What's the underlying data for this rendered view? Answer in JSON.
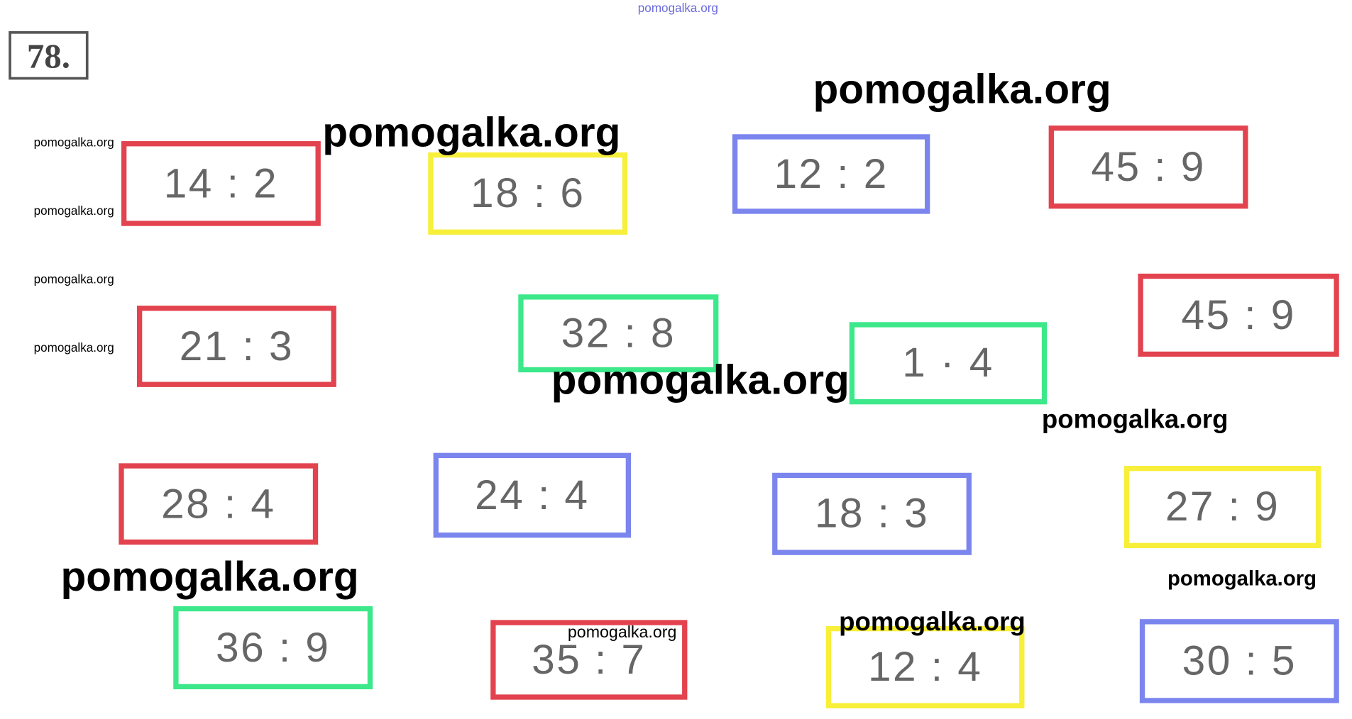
{
  "header": {
    "number": "78."
  },
  "cards": [
    {
      "text": "14 : 2",
      "color": "#e2434f"
    },
    {
      "text": "18 : 6",
      "color": "#f7ef3a"
    },
    {
      "text": "12 : 2",
      "color": "#7b85ee"
    },
    {
      "text": "45 : 9",
      "color": "#e2434f"
    },
    {
      "text": "21 : 3",
      "color": "#e2434f"
    },
    {
      "text": "32 : 8",
      "color": "#3de88a"
    },
    {
      "text": "1 · 4",
      "color": "#3de88a"
    },
    {
      "text": "45 : 9",
      "color": "#e2434f"
    },
    {
      "text": "28 : 4",
      "color": "#e2434f"
    },
    {
      "text": "24 : 4",
      "color": "#7b85ee"
    },
    {
      "text": "18 : 3",
      "color": "#7b85ee"
    },
    {
      "text": "27 : 9",
      "color": "#f7ef3a"
    },
    {
      "text": "36 : 9",
      "color": "#3de88a"
    },
    {
      "text": "35 : 7",
      "color": "#e2434f"
    },
    {
      "text": "12 : 4",
      "color": "#f7ef3a"
    },
    {
      "text": "30 : 5",
      "color": "#7b85ee"
    }
  ],
  "watermarks": [
    "pomogalka.org",
    "pomogalka.org",
    "pomogalka.org",
    "pomogalka.org",
    "pomogalka.org",
    "pomogalka.org",
    "pomogalka.org",
    "pomogalka.org",
    "pomogalka.org",
    "pomogalka.org",
    "pomogalka.org",
    "pomogalka.org",
    "pomogalka.org"
  ]
}
